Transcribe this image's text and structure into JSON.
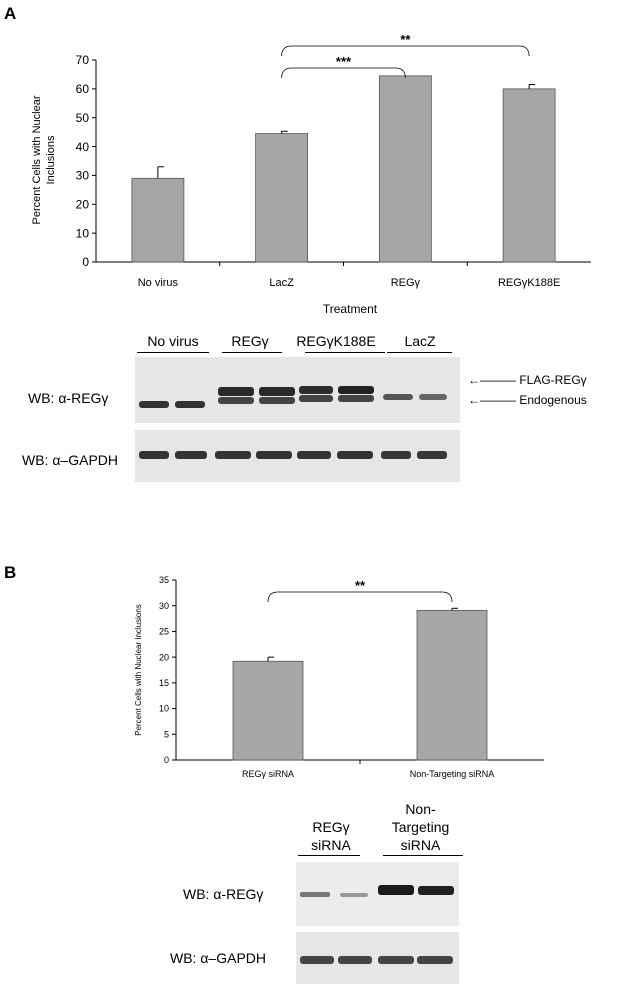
{
  "panel_a": {
    "letter": "A",
    "chart": {
      "ylabel_line1": "Percent Cells with Nuclear",
      "ylabel_line2": "Inclusions",
      "xlabel": "Treatment",
      "yticks": [
        "0",
        "10",
        "20",
        "30",
        "40",
        "50",
        "60",
        "70"
      ],
      "sig1": "***",
      "sig2": "**"
    },
    "blot": {
      "lane_labels": [
        "No virus",
        "REGγ",
        "REGγK188E",
        "LacZ"
      ],
      "row1_label": "WB: α-REGγ",
      "row2_label": "WB: α–GAPDH",
      "arrow1_label": "FLAG-REGγ",
      "arrow2_label": "Endogenous"
    }
  },
  "panel_b": {
    "letter": "B",
    "chart": {
      "ylabel": "Percent Cells with Nuclear Inclusions",
      "yticks": [
        "0",
        "5",
        "10",
        "15",
        "20",
        "25",
        "30",
        "35"
      ],
      "sig": "**"
    },
    "blot": {
      "lane1_line1": "REGγ",
      "lane1_line2": "siRNA",
      "lane2_line1": "Non-",
      "lane2_line2": "Targeting",
      "lane2_line3": "siRNA",
      "row1_label": "WB: α-REGγ",
      "row2_label": "WB: α–GAPDH"
    }
  },
  "chart_data": [
    {
      "type": "bar",
      "categories": [
        "No virus",
        "LacZ",
        "REGγ",
        "REGγK188E"
      ],
      "values": [
        29,
        44.5,
        64.5,
        60
      ],
      "errors": [
        4,
        0.8,
        0,
        1.5
      ],
      "xlabel": "Treatment",
      "ylabel": "Percent Cells with Nuclear Inclusions",
      "ylim": [
        0,
        70
      ],
      "bar_color": "#a6a6a6",
      "significance": [
        {
          "from": "LacZ",
          "to": "REGγ",
          "label": "***"
        },
        {
          "from": "LacZ",
          "to": "REGγK188E",
          "label": "**"
        }
      ]
    },
    {
      "type": "bar",
      "categories": [
        "REGγ siRNA",
        "Non-Targeting siRNA"
      ],
      "values": [
        19.2,
        29.1
      ],
      "errors": [
        0.8,
        0.4
      ],
      "xlabel": "",
      "ylabel": "Percent Cells with Nuclear Inclusions",
      "ylim": [
        0,
        35
      ],
      "bar_color": "#a6a6a6",
      "significance": [
        {
          "from": "REGγ siRNA",
          "to": "Non-Targeting siRNA",
          "label": "**"
        }
      ]
    }
  ]
}
